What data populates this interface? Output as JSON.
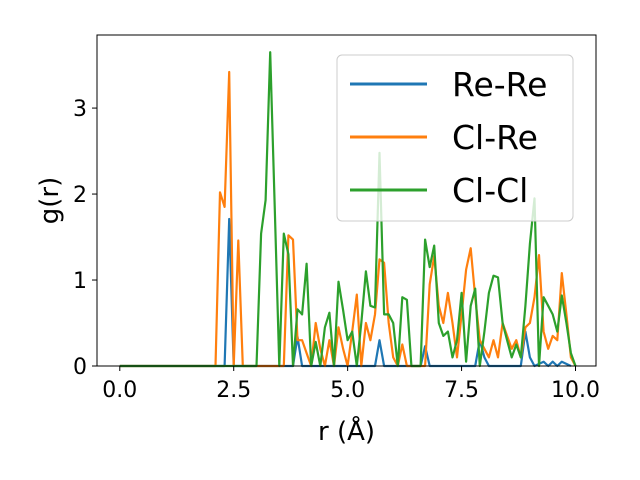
{
  "chart_data": {
    "type": "line",
    "xlabel": "r (Å)",
    "ylabel": "g(r)",
    "xlim": [
      -0.5,
      10.45
    ],
    "ylim": [
      0,
      3.85
    ],
    "xticks": [
      0.0,
      2.5,
      5.0,
      7.5,
      10.0
    ],
    "xtick_labels": [
      "0.0",
      "2.5",
      "5.0",
      "7.5",
      "10.0"
    ],
    "yticks": [
      0,
      1,
      2,
      3
    ],
    "ytick_labels": [
      "0",
      "1",
      "2",
      "3"
    ],
    "grid": false,
    "legend": "top-right",
    "series": [
      {
        "name": "Re-Re",
        "color": "#1f77b4",
        "points": [
          [
            0.0,
            0
          ],
          [
            2.3,
            0
          ],
          [
            2.4,
            1.71
          ],
          [
            2.5,
            0
          ],
          [
            3.8,
            0
          ],
          [
            3.9,
            0.34
          ],
          [
            4.0,
            0
          ],
          [
            5.6,
            0
          ],
          [
            5.7,
            0.3
          ],
          [
            5.8,
            0
          ],
          [
            6.6,
            0
          ],
          [
            6.7,
            0.23
          ],
          [
            6.8,
            0
          ],
          [
            7.8,
            0
          ],
          [
            7.9,
            0.3
          ],
          [
            8.0,
            0.1
          ],
          [
            8.1,
            0
          ],
          [
            8.8,
            0
          ],
          [
            8.9,
            0.4
          ],
          [
            9.0,
            0.1
          ],
          [
            9.1,
            0
          ],
          [
            9.3,
            0.05
          ],
          [
            9.4,
            0
          ],
          [
            9.5,
            0.05
          ],
          [
            9.6,
            0
          ],
          [
            9.7,
            0.05
          ],
          [
            9.9,
            0
          ]
        ]
      },
      {
        "name": "Cl-Re",
        "color": "#ff7f0e",
        "points": [
          [
            0.0,
            0
          ],
          [
            2.1,
            0
          ],
          [
            2.2,
            2.02
          ],
          [
            2.3,
            1.85
          ],
          [
            2.4,
            3.42
          ],
          [
            2.5,
            0
          ],
          [
            2.6,
            1.46
          ],
          [
            2.7,
            0
          ],
          [
            3.6,
            0
          ],
          [
            3.7,
            1.52
          ],
          [
            3.8,
            1.47
          ],
          [
            3.9,
            0.3
          ],
          [
            4.0,
            0.3
          ],
          [
            4.1,
            0.15
          ],
          [
            4.2,
            0
          ],
          [
            4.3,
            0.5
          ],
          [
            4.4,
            0.2
          ],
          [
            4.5,
            0
          ],
          [
            4.6,
            0.3
          ],
          [
            4.7,
            0
          ],
          [
            4.8,
            0.45
          ],
          [
            4.9,
            0.2
          ],
          [
            5.0,
            0
          ],
          [
            5.1,
            0.4
          ],
          [
            5.2,
            0.83
          ],
          [
            5.3,
            0
          ],
          [
            5.4,
            0.5
          ],
          [
            5.5,
            0.3
          ],
          [
            5.6,
            0.6
          ],
          [
            5.7,
            1.24
          ],
          [
            5.8,
            1.2
          ],
          [
            5.9,
            0.5
          ],
          [
            6.0,
            0.1
          ],
          [
            6.1,
            0
          ],
          [
            6.2,
            0.25
          ],
          [
            6.3,
            0
          ],
          [
            6.7,
            0
          ],
          [
            6.8,
            0.95
          ],
          [
            6.9,
            1.28
          ],
          [
            7.0,
            0.7
          ],
          [
            7.1,
            0.5
          ],
          [
            7.2,
            0.85
          ],
          [
            7.3,
            0.5
          ],
          [
            7.4,
            0.1
          ],
          [
            7.5,
            0.6
          ],
          [
            7.6,
            1.12
          ],
          [
            7.7,
            1.37
          ],
          [
            7.8,
            0.8
          ],
          [
            7.9,
            0.3
          ],
          [
            8.0,
            0.2
          ],
          [
            8.1,
            0.1
          ],
          [
            8.2,
            0.3
          ],
          [
            8.3,
            0.1
          ],
          [
            8.4,
            0.5
          ],
          [
            8.5,
            0.35
          ],
          [
            8.6,
            0.2
          ],
          [
            8.7,
            0.3
          ],
          [
            8.8,
            0.1
          ],
          [
            8.9,
            0.45
          ],
          [
            9.0,
            0.5
          ],
          [
            9.1,
            0.8
          ],
          [
            9.2,
            1.29
          ],
          [
            9.3,
            0.4
          ],
          [
            9.4,
            0.2
          ],
          [
            9.5,
            0.35
          ],
          [
            9.6,
            0.3
          ],
          [
            9.7,
            1.08
          ],
          [
            9.8,
            0.6
          ],
          [
            9.9,
            0.1
          ],
          [
            10.0,
            0
          ]
        ]
      },
      {
        "name": "Cl-Cl",
        "color": "#2ca02c",
        "points": [
          [
            0.0,
            0
          ],
          [
            3.0,
            0
          ],
          [
            3.1,
            1.54
          ],
          [
            3.2,
            1.93
          ],
          [
            3.3,
            3.65
          ],
          [
            3.4,
            1.86
          ],
          [
            3.5,
            0
          ],
          [
            3.6,
            1.54
          ],
          [
            3.7,
            1.3
          ],
          [
            3.8,
            0
          ],
          [
            3.9,
            0.66
          ],
          [
            4.0,
            0.6
          ],
          [
            4.1,
            1.19
          ],
          [
            4.2,
            0
          ],
          [
            4.3,
            0.28
          ],
          [
            4.4,
            0
          ],
          [
            4.5,
            0.45
          ],
          [
            4.6,
            0.62
          ],
          [
            4.7,
            0
          ],
          [
            4.8,
            0.98
          ],
          [
            4.9,
            0.65
          ],
          [
            5.0,
            0.3
          ],
          [
            5.1,
            0.4
          ],
          [
            5.2,
            0
          ],
          [
            5.3,
            0.5
          ],
          [
            5.4,
            1.1
          ],
          [
            5.5,
            0.7
          ],
          [
            5.6,
            0.68
          ],
          [
            5.7,
            2.48
          ],
          [
            5.8,
            0.6
          ],
          [
            5.9,
            0.6
          ],
          [
            6.0,
            0.5
          ],
          [
            6.1,
            0
          ],
          [
            6.2,
            0.8
          ],
          [
            6.3,
            0.77
          ],
          [
            6.4,
            0
          ],
          [
            6.6,
            0
          ],
          [
            6.7,
            1.47
          ],
          [
            6.8,
            1.15
          ],
          [
            6.9,
            1.4
          ],
          [
            7.0,
            0.5
          ],
          [
            7.1,
            0.35
          ],
          [
            7.2,
            0.4
          ],
          [
            7.3,
            0.1
          ],
          [
            7.4,
            0.3
          ],
          [
            7.5,
            0.85
          ],
          [
            7.6,
            0.05
          ],
          [
            7.7,
            0.7
          ],
          [
            7.8,
            0.9
          ],
          [
            7.9,
            0
          ],
          [
            8.0,
            0.4
          ],
          [
            8.1,
            0.85
          ],
          [
            8.2,
            1.05
          ],
          [
            8.3,
            1.03
          ],
          [
            8.4,
            0.5
          ],
          [
            8.5,
            0.3
          ],
          [
            8.6,
            0.1
          ],
          [
            8.7,
            0.25
          ],
          [
            8.8,
            0.1
          ],
          [
            8.9,
            0.7
          ],
          [
            9.0,
            1.42
          ],
          [
            9.1,
            1.95
          ],
          [
            9.2,
            0
          ],
          [
            9.3,
            0.8
          ],
          [
            9.4,
            0.7
          ],
          [
            9.5,
            0.6
          ],
          [
            9.6,
            0.4
          ],
          [
            9.7,
            0.82
          ],
          [
            9.8,
            0.5
          ],
          [
            9.9,
            0.15
          ],
          [
            10.0,
            0
          ]
        ]
      }
    ]
  }
}
